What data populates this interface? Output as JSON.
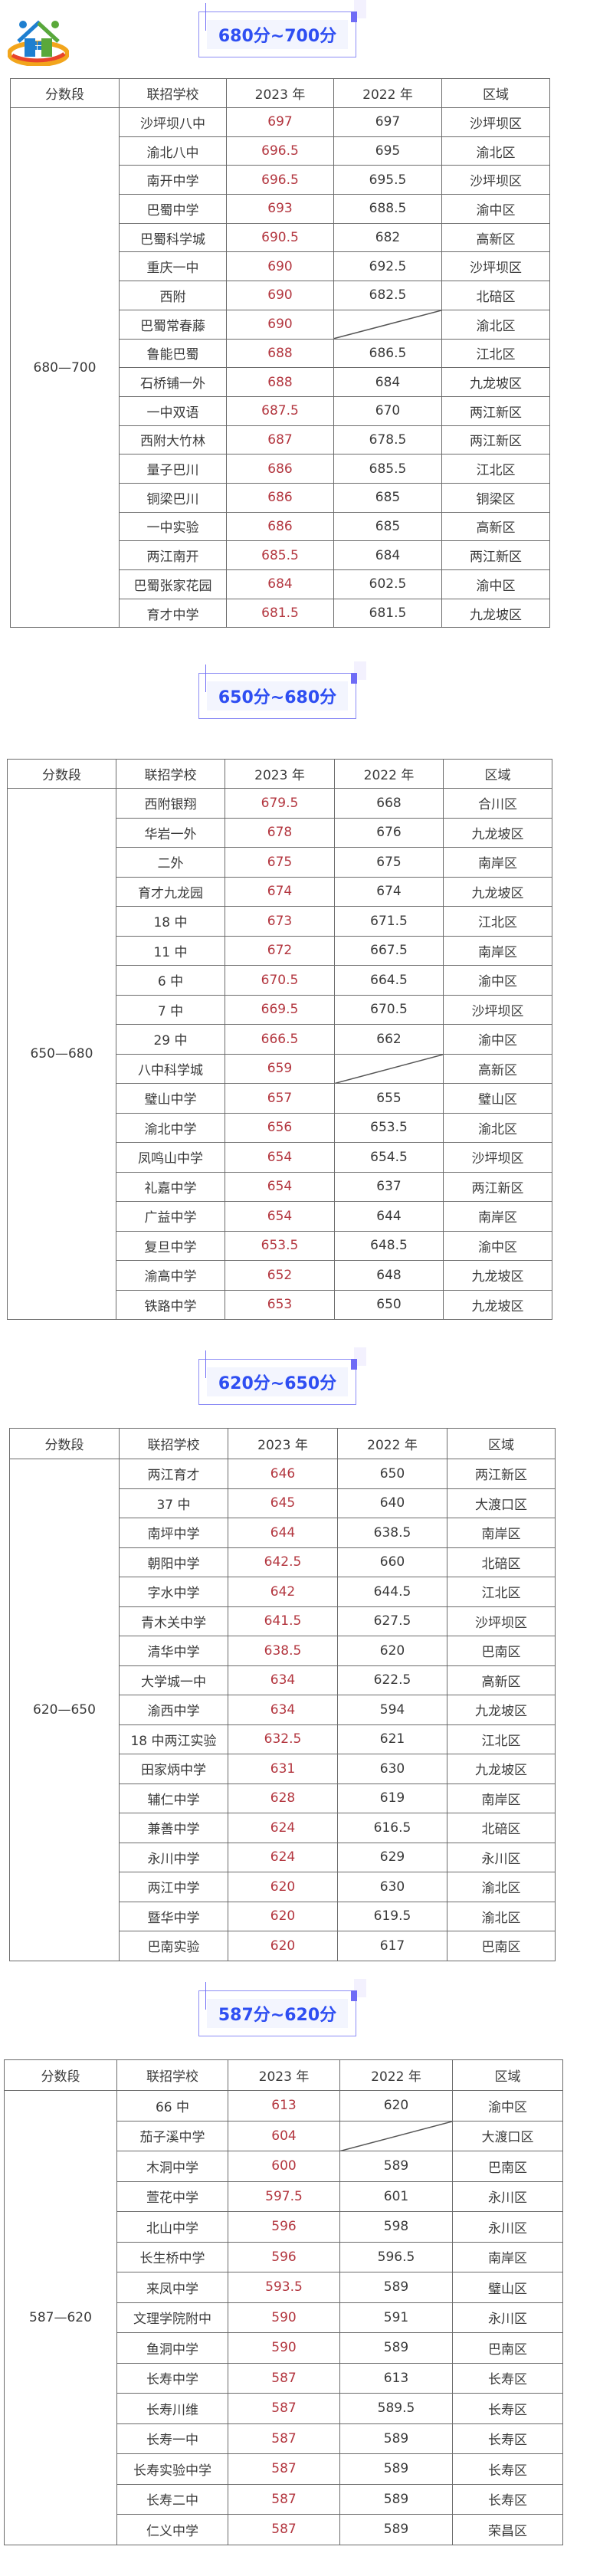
{
  "header": {
    "logo_icon": "house-people-logo-icon"
  },
  "colors": {
    "badge_text": "#2e4ef2",
    "score_2023": "#b3363f",
    "text": "#3a3a3a"
  },
  "columns": [
    "分数段",
    "联招学校",
    "2023 年",
    "2022 年",
    "区域"
  ],
  "sections": [
    {
      "title": "680分~700分",
      "range": "680—700",
      "rows": [
        [
          "沙坪坝八中",
          "697",
          "697",
          "沙坪坝区"
        ],
        [
          "渝北八中",
          "696.5",
          "695",
          "渝北区"
        ],
        [
          "南开中学",
          "696.5",
          "695.5",
          "沙坪坝区"
        ],
        [
          "巴蜀中学",
          "693",
          "688.5",
          "渝中区"
        ],
        [
          "巴蜀科学城",
          "690.5",
          "682",
          "高新区"
        ],
        [
          "重庆一中",
          "690",
          "692.5",
          "沙坪坝区"
        ],
        [
          "西附",
          "690",
          "682.5",
          "北碚区"
        ],
        [
          "巴蜀常春藤",
          "690",
          null,
          "渝北区"
        ],
        [
          "鲁能巴蜀",
          "688",
          "686.5",
          "江北区"
        ],
        [
          "石桥铺一外",
          "688",
          "684",
          "九龙坡区"
        ],
        [
          "一中双语",
          "687.5",
          "670",
          "两江新区"
        ],
        [
          "西附大竹林",
          "687",
          "678.5",
          "两江新区"
        ],
        [
          "量子巴川",
          "686",
          "685.5",
          "江北区"
        ],
        [
          "铜梁巴川",
          "686",
          "685",
          "铜梁区"
        ],
        [
          "一中实验",
          "686",
          "685",
          "高新区"
        ],
        [
          "两江南开",
          "685.5",
          "684",
          "两江新区"
        ],
        [
          "巴蜀张家花园",
          "684",
          "602.5",
          "渝中区"
        ],
        [
          "育才中学",
          "681.5",
          "681.5",
          "九龙坡区"
        ]
      ]
    },
    {
      "title": "650分~680分",
      "range": "650—680",
      "rows": [
        [
          "西附银翔",
          "679.5",
          "668",
          "合川区"
        ],
        [
          "华岩一外",
          "678",
          "676",
          "九龙坡区"
        ],
        [
          "二外",
          "675",
          "675",
          "南岸区"
        ],
        [
          "育才九龙园",
          "674",
          "674",
          "九龙坡区"
        ],
        [
          "18 中",
          "673",
          "671.5",
          "江北区"
        ],
        [
          "11 中",
          "672",
          "667.5",
          "南岸区"
        ],
        [
          "6 中",
          "670.5",
          "664.5",
          "渝中区"
        ],
        [
          "7 中",
          "669.5",
          "670.5",
          "沙坪坝区"
        ],
        [
          "29 中",
          "666.5",
          "662",
          "渝中区"
        ],
        [
          "八中科学城",
          "659",
          null,
          "高新区"
        ],
        [
          "璧山中学",
          "657",
          "655",
          "璧山区"
        ],
        [
          "渝北中学",
          "656",
          "653.5",
          "渝北区"
        ],
        [
          "凤鸣山中学",
          "654",
          "654.5",
          "沙坪坝区"
        ],
        [
          "礼嘉中学",
          "654",
          "637",
          "两江新区"
        ],
        [
          "广益中学",
          "654",
          "644",
          "南岸区"
        ],
        [
          "复旦中学",
          "653.5",
          "648.5",
          "渝中区"
        ],
        [
          "渝高中学",
          "652",
          "648",
          "九龙坡区"
        ],
        [
          "铁路中学",
          "653",
          "650",
          "九龙坡区"
        ]
      ]
    },
    {
      "title": "620分~650分",
      "range": "620—650",
      "rows": [
        [
          "两江育才",
          "646",
          "650",
          "两江新区"
        ],
        [
          "37 中",
          "645",
          "640",
          "大渡口区"
        ],
        [
          "南坪中学",
          "644",
          "638.5",
          "南岸区"
        ],
        [
          "朝阳中学",
          "642.5",
          "660",
          "北碚区"
        ],
        [
          "字水中学",
          "642",
          "644.5",
          "江北区"
        ],
        [
          "青木关中学",
          "641.5",
          "627.5",
          "沙坪坝区"
        ],
        [
          "清华中学",
          "638.5",
          "620",
          "巴南区"
        ],
        [
          "大学城一中",
          "634",
          "622.5",
          "高新区"
        ],
        [
          "渝西中学",
          "634",
          "594",
          "九龙坡区"
        ],
        [
          "18 中两江实验",
          "632.5",
          "621",
          "江北区"
        ],
        [
          "田家炳中学",
          "631",
          "630",
          "九龙坡区"
        ],
        [
          "辅仁中学",
          "628",
          "619",
          "南岸区"
        ],
        [
          "兼善中学",
          "624",
          "616.5",
          "北碚区"
        ],
        [
          "永川中学",
          "624",
          "629",
          "永川区"
        ],
        [
          "两江中学",
          "620",
          "630",
          "渝北区"
        ],
        [
          "暨华中学",
          "620",
          "619.5",
          "渝北区"
        ],
        [
          "巴南实验",
          "620",
          "617",
          "巴南区"
        ]
      ]
    },
    {
      "title": "587分~620分",
      "range": "587—620",
      "rows": [
        [
          "66 中",
          "613",
          "620",
          "渝中区"
        ],
        [
          "茄子溪中学",
          "604",
          null,
          "大渡口区"
        ],
        [
          "木洞中学",
          "600",
          "589",
          "巴南区"
        ],
        [
          "萱花中学",
          "597.5",
          "601",
          "永川区"
        ],
        [
          "北山中学",
          "596",
          "598",
          "永川区"
        ],
        [
          "长生桥中学",
          "596",
          "596.5",
          "南岸区"
        ],
        [
          "来凤中学",
          "593.5",
          "589",
          "璧山区"
        ],
        [
          "文理学院附中",
          "590",
          "591",
          "永川区"
        ],
        [
          "鱼洞中学",
          "590",
          "589",
          "巴南区"
        ],
        [
          "长寿中学",
          "587",
          "613",
          "长寿区"
        ],
        [
          "长寿川维",
          "587",
          "589.5",
          "长寿区"
        ],
        [
          "长寿一中",
          "587",
          "589",
          "长寿区"
        ],
        [
          "长寿实验中学",
          "587",
          "589",
          "长寿区"
        ],
        [
          "长寿二中",
          "587",
          "589",
          "长寿区"
        ],
        [
          "仁义中学",
          "587",
          "589",
          "荣昌区"
        ]
      ]
    }
  ]
}
